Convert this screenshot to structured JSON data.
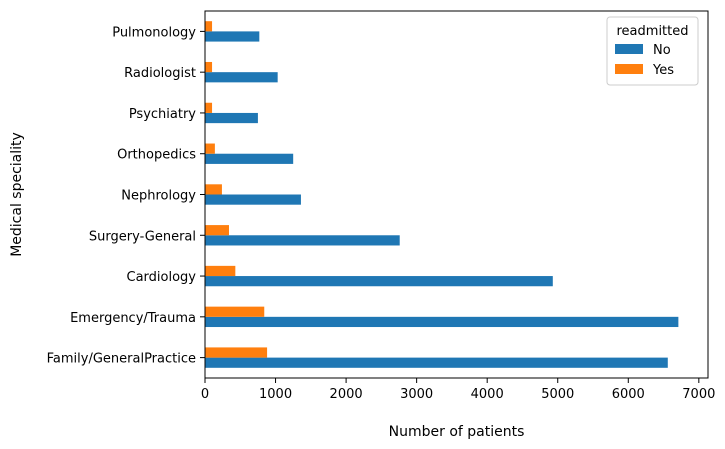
{
  "chart_data": {
    "type": "bar",
    "orientation": "horizontal",
    "categories": [
      "Family/GeneralPractice",
      "Emergency/Trauma",
      "Cardiology",
      "Surgery-General",
      "Nephrology",
      "Orthopedics",
      "Psychiatry",
      "Radiologist",
      "Pulmonology"
    ],
    "series": [
      {
        "name": "No",
        "color": "#1f77b4",
        "values": [
          6560,
          6710,
          4930,
          2760,
          1360,
          1250,
          750,
          1030,
          770
        ]
      },
      {
        "name": "Yes",
        "color": "#ff7f0e",
        "values": [
          880,
          840,
          430,
          340,
          240,
          140,
          100,
          100,
          100
        ]
      }
    ],
    "xlabel": "Number of patients",
    "ylabel": "Medical speciality",
    "xlim": [
      0,
      7000
    ],
    "xticks": [
      "0",
      "1000",
      "2000",
      "3000",
      "4000",
      "5000",
      "6000",
      "7000"
    ],
    "legend": {
      "title": "readmitted",
      "position": "top-right"
    },
    "grid": false
  }
}
